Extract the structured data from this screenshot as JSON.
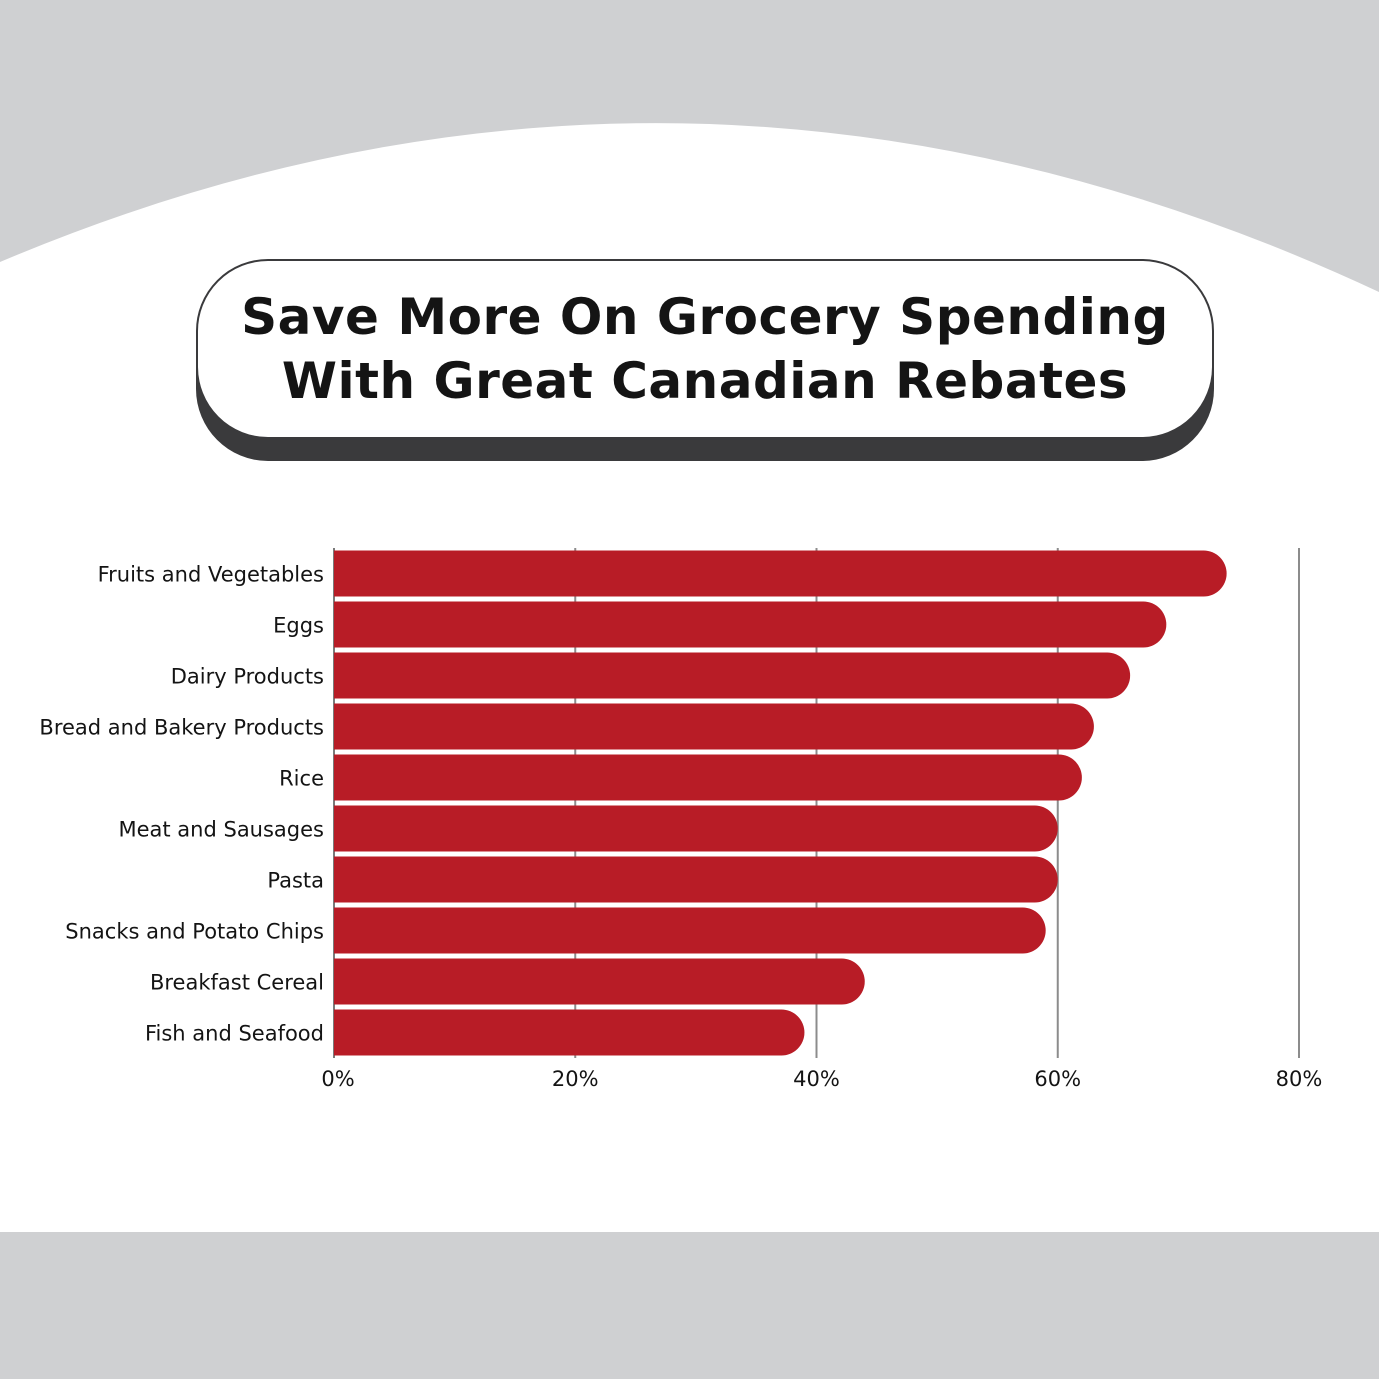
{
  "colors": {
    "background": "#cfd0d2",
    "panel": "#ffffff",
    "bar": "#b81c26",
    "grid": "#8c8c8c",
    "title_shadow": "#3a3a3c",
    "text": "#141414"
  },
  "title_lines": [
    "Save More On Grocery Spending",
    "With Great Canadian Rebates"
  ],
  "chart_data": {
    "type": "bar",
    "orientation": "horizontal",
    "title": "Save More On Grocery Spending With Great Canadian Rebates",
    "categories": [
      "Fruits and Vegetables",
      "Eggs",
      "Dairy Products",
      "Bread and Bakery Products",
      "Rice",
      "Meat and Sausages",
      "Pasta",
      "Snacks and Potato Chips",
      "Breakfast Cereal",
      "Fish and Seafood"
    ],
    "values": [
      74,
      69,
      66,
      63,
      62,
      60,
      60,
      59,
      44,
      39
    ],
    "unit": "%",
    "xlim": [
      0,
      80
    ],
    "xticks": [
      "0%",
      "20%",
      "40%",
      "60%",
      "80%"
    ],
    "xtick_values": [
      0,
      20,
      40,
      60,
      80
    ],
    "grid": true,
    "legend": "none"
  }
}
